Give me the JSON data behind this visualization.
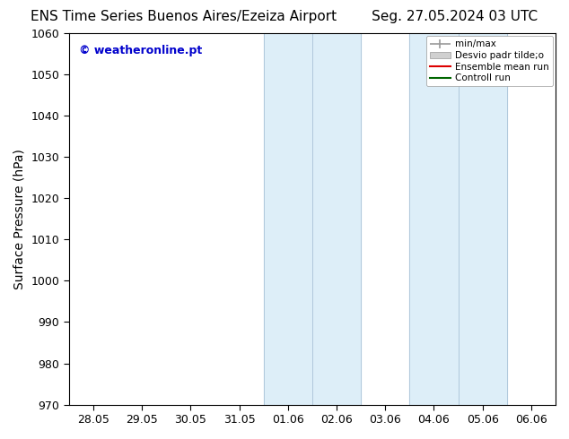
{
  "title_left": "ENS Time Series Buenos Aires/Ezeiza Airport",
  "title_right": "Seg. 27.05.2024 03 UTC",
  "ylabel": "Surface Pressure (hPa)",
  "ylim": [
    970,
    1060
  ],
  "yticks": [
    970,
    980,
    990,
    1000,
    1010,
    1020,
    1030,
    1040,
    1050,
    1060
  ],
  "xtick_labels": [
    "28.05",
    "29.05",
    "30.05",
    "31.05",
    "01.06",
    "02.06",
    "03.06",
    "04.06",
    "05.06",
    "06.06"
  ],
  "shaded_regions": [
    {
      "start": 4,
      "end": 5
    },
    {
      "start": 5,
      "end": 6
    },
    {
      "start": 7,
      "end": 8
    },
    {
      "start": 8,
      "end": 9
    }
  ],
  "shaded_color": "#ddeef8",
  "background_color": "#ffffff",
  "plot_bg_color": "#ffffff",
  "watermark_text": "© weatheronline.pt",
  "watermark_color": "#0000cc",
  "legend_labels": [
    "min/max",
    "Desvio padr tilde;o",
    "Ensemble mean run",
    "Controll run"
  ],
  "legend_colors_line": [
    "#999999",
    "#cccccc",
    "#dd0000",
    "#006600"
  ],
  "title_fontsize": 11,
  "tick_fontsize": 9,
  "ylabel_fontsize": 10,
  "spine_color": "#000000",
  "tick_color": "#000000",
  "separator_color": "#b0c8dc"
}
